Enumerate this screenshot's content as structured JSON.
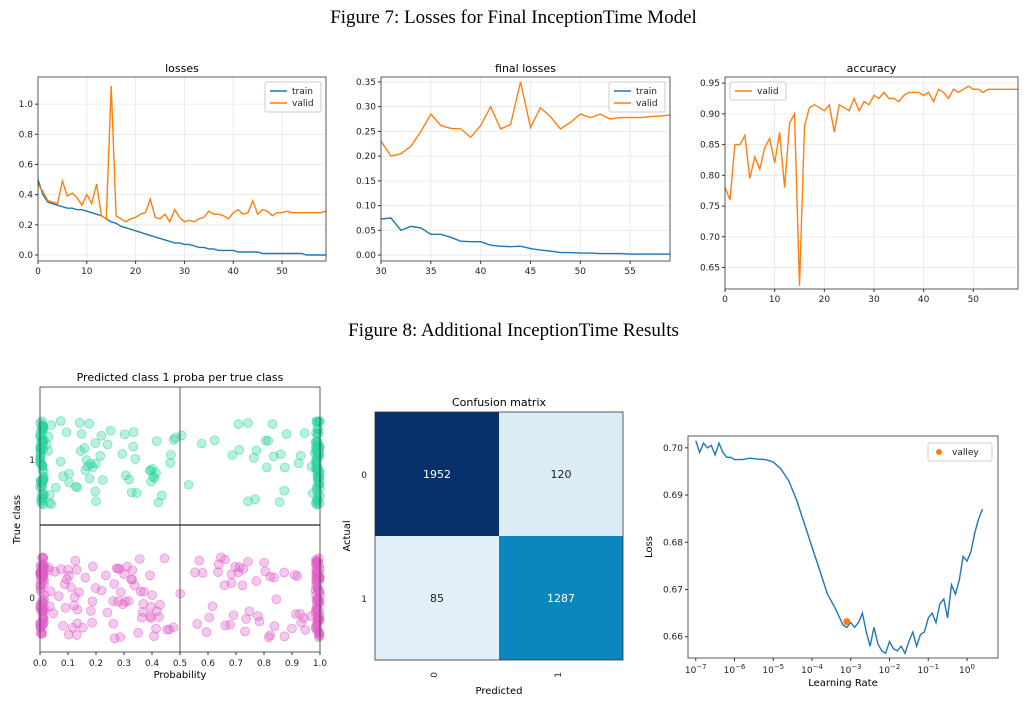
{
  "captions": {
    "fig7": "Figure 7: Losses for Final InceptionTime Model",
    "fig8": "Figure 8: Additional InceptionTime Results"
  },
  "colors": {
    "train": "#1f77b4",
    "valid": "#ff7f0e",
    "class1": "#2ed3a0",
    "class0": "#e060c8",
    "cm_dark": "#08306b",
    "cm_mid": "#0b87bd",
    "cm_light": "#f0f6fc"
  },
  "chart_data": [
    {
      "id": "losses",
      "type": "line",
      "title": "losses",
      "xlim": [
        0,
        59
      ],
      "ylim": [
        -0.04,
        1.18
      ],
      "xticks": [
        0,
        10,
        20,
        30,
        40,
        50
      ],
      "yticks": [
        0.0,
        0.2,
        0.4,
        0.6,
        0.8,
        1.0
      ],
      "ytick_labels": [
        "0.0",
        "0.2",
        "0.4",
        "0.6",
        "0.8",
        "1.0"
      ],
      "legend": "top-right",
      "series": [
        {
          "name": "train",
          "color": "#1f77b4",
          "x": [
            0,
            1,
            2,
            3,
            4,
            5,
            6,
            7,
            8,
            9,
            10,
            11,
            12,
            13,
            14,
            15,
            16,
            17,
            18,
            19,
            20,
            21,
            22,
            23,
            24,
            25,
            26,
            27,
            28,
            29,
            30,
            31,
            32,
            33,
            34,
            35,
            36,
            37,
            38,
            39,
            40,
            41,
            42,
            43,
            44,
            45,
            46,
            47,
            48,
            49,
            50,
            51,
            52,
            53,
            54,
            55,
            56,
            57,
            58,
            59
          ],
          "y": [
            0.5,
            0.4,
            0.35,
            0.34,
            0.33,
            0.32,
            0.31,
            0.31,
            0.3,
            0.3,
            0.29,
            0.28,
            0.27,
            0.26,
            0.24,
            0.22,
            0.21,
            0.19,
            0.18,
            0.17,
            0.16,
            0.15,
            0.14,
            0.13,
            0.12,
            0.11,
            0.1,
            0.09,
            0.08,
            0.08,
            0.07,
            0.07,
            0.06,
            0.05,
            0.05,
            0.04,
            0.04,
            0.03,
            0.03,
            0.03,
            0.03,
            0.02,
            0.02,
            0.02,
            0.02,
            0.02,
            0.01,
            0.01,
            0.01,
            0.01,
            0.01,
            0.01,
            0.01,
            0.01,
            0.01,
            0.0,
            0.0,
            0.0,
            0.0,
            0.0
          ]
        },
        {
          "name": "valid",
          "color": "#ff7f0e",
          "x": [
            0,
            1,
            2,
            3,
            4,
            5,
            6,
            7,
            8,
            9,
            10,
            11,
            12,
            13,
            14,
            15,
            16,
            17,
            18,
            19,
            20,
            21,
            22,
            23,
            24,
            25,
            26,
            27,
            28,
            29,
            30,
            31,
            32,
            33,
            34,
            35,
            36,
            37,
            38,
            39,
            40,
            41,
            42,
            43,
            44,
            45,
            46,
            47,
            48,
            49,
            50,
            51,
            52,
            53,
            54,
            55,
            56,
            57,
            58,
            59
          ],
          "y": [
            0.47,
            0.42,
            0.36,
            0.35,
            0.34,
            0.49,
            0.39,
            0.41,
            0.38,
            0.33,
            0.4,
            0.34,
            0.47,
            0.26,
            0.24,
            1.12,
            0.26,
            0.24,
            0.22,
            0.24,
            0.25,
            0.27,
            0.28,
            0.37,
            0.25,
            0.24,
            0.27,
            0.22,
            0.3,
            0.25,
            0.22,
            0.23,
            0.22,
            0.24,
            0.25,
            0.29,
            0.27,
            0.27,
            0.26,
            0.24,
            0.28,
            0.3,
            0.27,
            0.28,
            0.36,
            0.27,
            0.3,
            0.29,
            0.26,
            0.28,
            0.28,
            0.29,
            0.28,
            0.28,
            0.28,
            0.28,
            0.28,
            0.28,
            0.28,
            0.29
          ]
        }
      ]
    },
    {
      "id": "final_losses",
      "type": "line",
      "title": "final losses",
      "xlim": [
        30,
        59
      ],
      "ylim": [
        -0.012,
        0.36
      ],
      "xticks": [
        30,
        35,
        40,
        45,
        50,
        55
      ],
      "yticks": [
        0.0,
        0.05,
        0.1,
        0.15,
        0.2,
        0.25,
        0.3,
        0.35
      ],
      "ytick_labels": [
        "0.00",
        "0.05",
        "0.10",
        "0.15",
        "0.20",
        "0.25",
        "0.30",
        "0.35"
      ],
      "legend": "top-right",
      "series": [
        {
          "name": "train",
          "color": "#1f77b4",
          "x": [
            30,
            31,
            32,
            33,
            34,
            35,
            36,
            37,
            38,
            39,
            40,
            41,
            42,
            43,
            44,
            45,
            46,
            47,
            48,
            49,
            50,
            51,
            52,
            53,
            54,
            55,
            56,
            57,
            58,
            59
          ],
          "y": [
            0.073,
            0.075,
            0.05,
            0.058,
            0.055,
            0.042,
            0.042,
            0.036,
            0.028,
            0.027,
            0.027,
            0.02,
            0.018,
            0.017,
            0.018,
            0.013,
            0.01,
            0.008,
            0.005,
            0.005,
            0.004,
            0.004,
            0.003,
            0.003,
            0.003,
            0.002,
            0.002,
            0.002,
            0.002,
            0.002
          ]
        },
        {
          "name": "valid",
          "color": "#ff7f0e",
          "x": [
            30,
            31,
            32,
            33,
            34,
            35,
            36,
            37,
            38,
            39,
            40,
            41,
            42,
            43,
            44,
            45,
            46,
            47,
            48,
            49,
            50,
            51,
            52,
            53,
            54,
            55,
            56,
            57,
            58,
            59
          ],
          "y": [
            0.23,
            0.2,
            0.205,
            0.22,
            0.25,
            0.285,
            0.262,
            0.256,
            0.255,
            0.238,
            0.262,
            0.3,
            0.255,
            0.264,
            0.35,
            0.258,
            0.298,
            0.28,
            0.255,
            0.268,
            0.285,
            0.278,
            0.285,
            0.275,
            0.278,
            0.278,
            0.278,
            0.28,
            0.281,
            0.283
          ]
        }
      ]
    },
    {
      "id": "accuracy",
      "type": "line",
      "title": "accuracy",
      "xlim": [
        0,
        59
      ],
      "ylim": [
        0.615,
        0.96
      ],
      "xticks": [
        0,
        10,
        20,
        30,
        40,
        50
      ],
      "yticks": [
        0.65,
        0.7,
        0.75,
        0.8,
        0.85,
        0.9,
        0.95
      ],
      "ytick_labels": [
        "0.65",
        "0.70",
        "0.75",
        "0.80",
        "0.85",
        "0.90",
        "0.95"
      ],
      "legend": "top-left",
      "series": [
        {
          "name": "valid",
          "color": "#ff7f0e",
          "x": [
            0,
            1,
            2,
            3,
            4,
            5,
            6,
            7,
            8,
            9,
            10,
            11,
            12,
            13,
            14,
            15,
            16,
            17,
            18,
            19,
            20,
            21,
            22,
            23,
            24,
            25,
            26,
            27,
            28,
            29,
            30,
            31,
            32,
            33,
            34,
            35,
            36,
            37,
            38,
            39,
            40,
            41,
            42,
            43,
            44,
            45,
            46,
            47,
            48,
            49,
            50,
            51,
            52,
            53,
            54,
            55,
            56,
            57,
            58,
            59
          ],
          "y": [
            0.78,
            0.76,
            0.85,
            0.85,
            0.865,
            0.795,
            0.83,
            0.81,
            0.845,
            0.86,
            0.82,
            0.87,
            0.78,
            0.885,
            0.9,
            0.62,
            0.88,
            0.91,
            0.915,
            0.91,
            0.905,
            0.915,
            0.87,
            0.915,
            0.91,
            0.905,
            0.925,
            0.905,
            0.92,
            0.915,
            0.93,
            0.925,
            0.935,
            0.925,
            0.925,
            0.92,
            0.93,
            0.935,
            0.935,
            0.935,
            0.93,
            0.935,
            0.92,
            0.94,
            0.935,
            0.925,
            0.94,
            0.935,
            0.94,
            0.945,
            0.94,
            0.94,
            0.935,
            0.94,
            0.94,
            0.94,
            0.94,
            0.94,
            0.94,
            0.94
          ]
        }
      ]
    },
    {
      "id": "proba_scatter",
      "type": "scatter",
      "title": "Predicted class 1 proba per true class",
      "xlabel": "Probability",
      "ylabel": "True class",
      "xlim": [
        0,
        1
      ],
      "xticks": [
        0,
        0.1,
        0.2,
        0.3,
        0.4,
        0.5,
        0.6,
        0.7,
        0.8,
        0.9,
        1.0
      ],
      "xtick_labels": [
        "0.0",
        "0.1",
        "0.2",
        "0.3",
        "0.4",
        "0.5",
        "0.6",
        "0.7",
        "0.8",
        "0.9",
        "1.0"
      ],
      "y_categories": [
        "1",
        "0"
      ],
      "series": [
        {
          "name": "1",
          "color": "#2ed3a0"
        },
        {
          "name": "0",
          "color": "#e060c8"
        }
      ]
    },
    {
      "id": "confusion",
      "type": "heatmap",
      "title": "Confusion matrix",
      "xlabel": "Predicted",
      "ylabel": "Actual",
      "row_labels": [
        "0",
        "1"
      ],
      "col_labels": [
        "0",
        "1"
      ],
      "values": [
        [
          1952,
          120
        ],
        [
          85,
          1287
        ]
      ],
      "cell_labels": [
        [
          "1952",
          "120"
        ],
        [
          "85",
          "1287"
        ]
      ]
    },
    {
      "id": "lr_find",
      "type": "line",
      "title": "",
      "xlabel": "Learning Rate",
      "ylabel": "Loss",
      "xscale": "log",
      "xlim_log10": [
        -7.2,
        0.8
      ],
      "ylim": [
        0.6555,
        0.7025
      ],
      "xtick_log10": [
        -7,
        -6,
        -5,
        -4,
        -3,
        -2,
        -1,
        0
      ],
      "yticks": [
        0.66,
        0.67,
        0.68,
        0.69,
        0.7
      ],
      "ytick_labels": [
        "0.66",
        "0.67",
        "0.68",
        "0.69",
        "0.70"
      ],
      "legend": "top-right",
      "series": [
        {
          "name": "",
          "color": "#1f77b4",
          "x_log10": [
            -7.0,
            -6.9,
            -6.8,
            -6.7,
            -6.6,
            -6.5,
            -6.4,
            -6.3,
            -6.2,
            -6.1,
            -6.0,
            -5.8,
            -5.6,
            -5.4,
            -5.2,
            -5.0,
            -4.8,
            -4.6,
            -4.4,
            -4.2,
            -4.0,
            -3.8,
            -3.6,
            -3.4,
            -3.2,
            -3.1,
            -3.0,
            -2.9,
            -2.8,
            -2.7,
            -2.6,
            -2.5,
            -2.4,
            -2.3,
            -2.2,
            -2.1,
            -2.0,
            -1.9,
            -1.8,
            -1.7,
            -1.6,
            -1.5,
            -1.4,
            -1.3,
            -1.2,
            -1.1,
            -1.0,
            -0.9,
            -0.8,
            -0.7,
            -0.6,
            -0.5,
            -0.4,
            -0.3,
            -0.2,
            -0.1,
            0.0,
            0.1,
            0.2,
            0.3,
            0.4
          ],
          "y": [
            0.7015,
            0.699,
            0.701,
            0.7,
            0.7005,
            0.6985,
            0.701,
            0.699,
            0.698,
            0.698,
            0.6975,
            0.6975,
            0.6978,
            0.6976,
            0.6975,
            0.697,
            0.6955,
            0.693,
            0.689,
            0.684,
            0.679,
            0.674,
            0.669,
            0.666,
            0.6625,
            0.662,
            0.663,
            0.662,
            0.663,
            0.665,
            0.661,
            0.658,
            0.662,
            0.6585,
            0.657,
            0.6565,
            0.659,
            0.6575,
            0.657,
            0.658,
            0.6565,
            0.659,
            0.661,
            0.658,
            0.6605,
            0.661,
            0.664,
            0.665,
            0.663,
            0.667,
            0.668,
            0.664,
            0.671,
            0.669,
            0.672,
            0.677,
            0.676,
            0.678,
            0.682,
            0.685,
            0.687
          ]
        },
        {
          "name": "valley",
          "type": "point",
          "color": "#ff7f0e",
          "x_log10": [
            -3.1
          ],
          "y": [
            0.6632
          ]
        }
      ]
    }
  ]
}
